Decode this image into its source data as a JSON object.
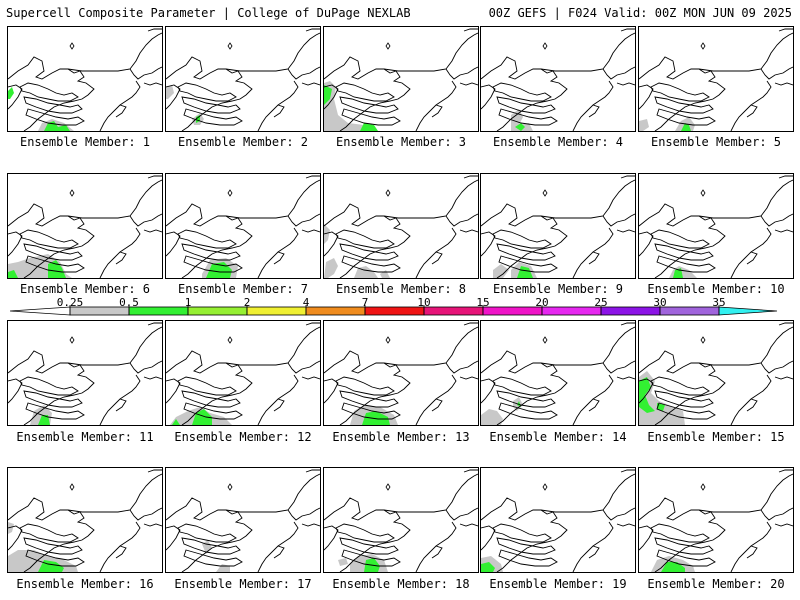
{
  "header": {
    "title": "Supercell Composite Parameter | College of DuPage NEXLAB",
    "run_info": "00Z GEFS | F024 Valid: 00Z MON JUN 09 2025"
  },
  "colorbar": {
    "labels": [
      "0.25",
      "0.5",
      "1",
      "2",
      "4",
      "7",
      "10",
      "15",
      "20",
      "25",
      "30",
      "35"
    ],
    "colors": [
      "#c8c8c8",
      "#32f032",
      "#96f032",
      "#f0f032",
      "#f08c1e",
      "#f01414",
      "#e61478",
      "#f014c8",
      "#e628f0",
      "#8c14e6",
      "#a064dc",
      "#32f0f0"
    ]
  },
  "panels": [
    {
      "caption": "Ensemble Member: 1"
    },
    {
      "caption": "Ensemble Member: 2"
    },
    {
      "caption": "Ensemble Member: 3"
    },
    {
      "caption": "Ensemble Member: 4"
    },
    {
      "caption": "Ensemble Member: 5"
    },
    {
      "caption": "Ensemble Member: 6"
    },
    {
      "caption": "Ensemble Member: 7"
    },
    {
      "caption": "Ensemble Member: 8"
    },
    {
      "caption": "Ensemble Member: 9"
    },
    {
      "caption": "Ensemble Member: 10"
    },
    {
      "caption": "Ensemble Member: 11"
    },
    {
      "caption": "Ensemble Member: 12"
    },
    {
      "caption": "Ensemble Member: 13"
    },
    {
      "caption": "Ensemble Member: 14"
    },
    {
      "caption": "Ensemble Member: 15"
    },
    {
      "caption": "Ensemble Member: 16"
    },
    {
      "caption": "Ensemble Member: 17"
    },
    {
      "caption": "Ensemble Member: 18"
    },
    {
      "caption": "Ensemble Member: 19"
    },
    {
      "caption": "Ensemble Member: 20"
    }
  ]
}
